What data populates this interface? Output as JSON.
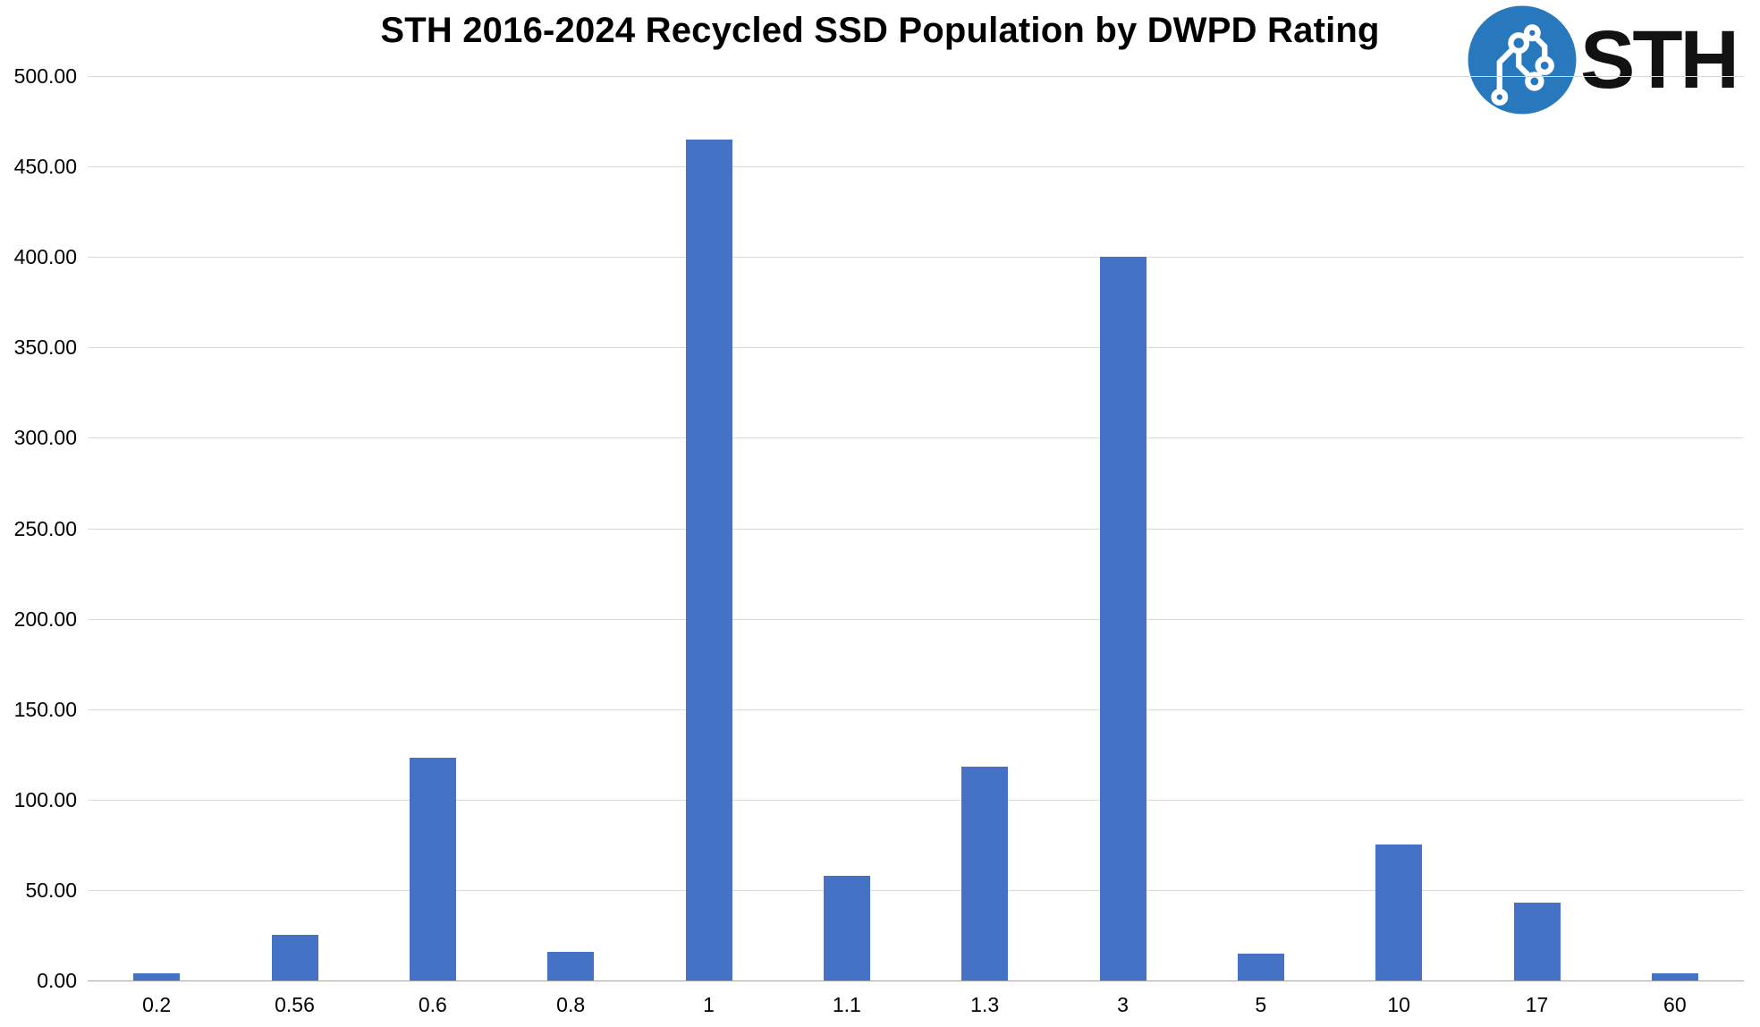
{
  "logo": {
    "text": "STH"
  },
  "chart_data": {
    "type": "bar",
    "title": "STH 2016-2024 Recycled SSD Population by DWPD Rating",
    "categories": [
      "0.2",
      "0.56",
      "0.6",
      "0.8",
      "1",
      "1.1",
      "1.3",
      "3",
      "5",
      "10",
      "17",
      "60"
    ],
    "values": [
      4,
      25,
      123,
      16,
      465,
      58,
      118,
      400,
      15,
      75,
      43,
      4
    ],
    "xlabel": "",
    "ylabel": "",
    "ylim": [
      0,
      500
    ],
    "ytick_step": 50,
    "ytick_labels": [
      "0.00",
      "50.00",
      "100.00",
      "150.00",
      "200.00",
      "250.00",
      "300.00",
      "350.00",
      "400.00",
      "450.00",
      "500.00"
    ],
    "grid": true,
    "legend": "none",
    "bar_color": "#4472C4",
    "gridline_color": "#D9D9D9",
    "axis_line_color": "#A6A6A6",
    "logo_blue": "#2878BE"
  }
}
